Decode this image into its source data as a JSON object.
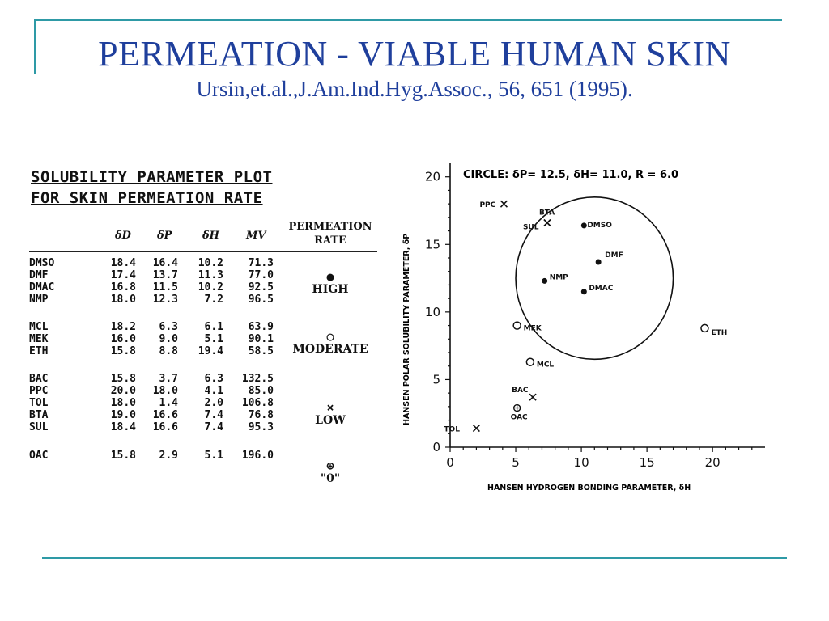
{
  "slide": {
    "title": "PERMEATION - VIABLE HUMAN SKIN",
    "subtitle": "Ursin,et.al.,J.Am.Ind.Hyg.Assoc., 56, 651 (1995).",
    "accent_color": "#2e9aa6",
    "title_color": "#1f3f9c"
  },
  "table": {
    "title_line1": "SOLUBILITY PARAMETER PLOT",
    "title_line2": "FOR SKIN PERMEATION RATE",
    "headers": [
      "δD",
      "δP",
      "δH",
      "MV"
    ],
    "rate_header_line1": "PERMEATION",
    "rate_header_line2": "RATE",
    "rows": [
      {
        "name": "DMSO",
        "dD": "18.4",
        "dP": "16.4",
        "dH": "10.2",
        "mv": "71.3"
      },
      {
        "name": "DMF",
        "dD": "17.4",
        "dP": "13.7",
        "dH": "11.3",
        "mv": "77.0"
      },
      {
        "name": "DMAC",
        "dD": "16.8",
        "dP": "11.5",
        "dH": "10.2",
        "mv": "92.5"
      },
      {
        "name": "NMP",
        "dD": "18.0",
        "dP": "12.3",
        "dH": "7.2",
        "mv": "96.5"
      },
      {
        "name": "MCL",
        "dD": "18.2",
        "dP": "6.3",
        "dH": "6.1",
        "mv": "63.9"
      },
      {
        "name": "MEK",
        "dD": "16.0",
        "dP": "9.0",
        "dH": "5.1",
        "mv": "90.1"
      },
      {
        "name": "ETH",
        "dD": "15.8",
        "dP": "8.8",
        "dH": "19.4",
        "mv": "58.5"
      },
      {
        "name": "BAC",
        "dD": "15.8",
        "dP": "3.7",
        "dH": "6.3",
        "mv": "132.5"
      },
      {
        "name": "PPC",
        "dD": "20.0",
        "dP": "18.0",
        "dH": "4.1",
        "mv": "85.0"
      },
      {
        "name": "TOL",
        "dD": "18.0",
        "dP": "1.4",
        "dH": "2.0",
        "mv": "106.8"
      },
      {
        "name": "BTA",
        "dD": "19.0",
        "dP": "16.6",
        "dH": "7.4",
        "mv": "76.8"
      },
      {
        "name": "SUL",
        "dD": "18.4",
        "dP": "16.6",
        "dH": "7.4",
        "mv": "95.3"
      },
      {
        "name": "OAC",
        "dD": "15.8",
        "dP": "2.9",
        "dH": "5.1",
        "mv": "196.0"
      }
    ],
    "groups": [
      {
        "label": "HIGH",
        "symbol": "●"
      },
      {
        "label": "MODERATE",
        "symbol": "○"
      },
      {
        "label": "LOW",
        "symbol": "×"
      },
      {
        "label": "\"0\"",
        "symbol": "⊕"
      }
    ]
  },
  "chart_data": {
    "type": "scatter",
    "title": "CIRCLE: δP= 12.5, δH= 11.0, R = 6.0",
    "xlabel": "HANSEN HYDROGEN BONDING PARAMETER, δH",
    "ylabel": "HANSEN POLAR SOLUBILITY PARAMETER, δP",
    "xlim": [
      0,
      24
    ],
    "ylim": [
      0,
      21
    ],
    "xticks": [
      0,
      5,
      10,
      15,
      20
    ],
    "yticks": [
      0,
      5,
      10,
      15,
      20
    ],
    "circle": {
      "center_x": 11.0,
      "center_y": 12.5,
      "radius": 6.0
    },
    "points": [
      {
        "label": "DMSO",
        "x": 10.2,
        "y": 16.4,
        "marker": "dot"
      },
      {
        "label": "DMF",
        "x": 11.3,
        "y": 13.7,
        "marker": "dot"
      },
      {
        "label": "DMAC",
        "x": 10.2,
        "y": 11.5,
        "marker": "dot"
      },
      {
        "label": "NMP",
        "x": 7.2,
        "y": 12.3,
        "marker": "dot"
      },
      {
        "label": "MEK",
        "x": 5.1,
        "y": 9.0,
        "marker": "circle"
      },
      {
        "label": "MCL",
        "x": 6.1,
        "y": 6.3,
        "marker": "circle"
      },
      {
        "label": "ETH",
        "x": 19.4,
        "y": 8.8,
        "marker": "circle"
      },
      {
        "label": "BAC",
        "x": 6.3,
        "y": 3.7,
        "marker": "cross"
      },
      {
        "label": "PPC",
        "x": 4.1,
        "y": 18.0,
        "marker": "cross"
      },
      {
        "label": "TOL",
        "x": 2.0,
        "y": 1.4,
        "marker": "cross"
      },
      {
        "label": "BTA",
        "x": 7.4,
        "y": 16.6,
        "marker": "cross"
      },
      {
        "label": "SUL",
        "x": 7.4,
        "y": 16.6,
        "marker": "cross"
      },
      {
        "label": "OAC",
        "x": 5.1,
        "y": 2.9,
        "marker": "oplus"
      }
    ]
  }
}
